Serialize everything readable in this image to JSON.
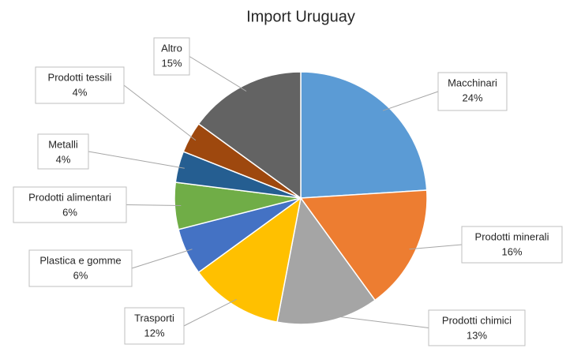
{
  "chart_data": {
    "type": "pie",
    "title": "Import Uruguay",
    "categories": [
      "Macchinari",
      "Prodotti minerali",
      "Prodotti chimici",
      "Trasporti",
      "Plastica e gomme",
      "Prodotti alimentari",
      "Metalli",
      "Prodotti tessili",
      "Altro"
    ],
    "values": [
      24,
      16,
      13,
      12,
      6,
      6,
      4,
      4,
      15
    ],
    "value_labels": [
      "24%",
      "16%",
      "13%",
      "12%",
      "6%",
      "6%",
      "4%",
      "4%",
      "15%"
    ],
    "colors": [
      "#5b9bd5",
      "#ed7d31",
      "#a5a5a5",
      "#ffc000",
      "#4472c4",
      "#70ad47",
      "#255e91",
      "#9e480e",
      "#636363"
    ]
  }
}
